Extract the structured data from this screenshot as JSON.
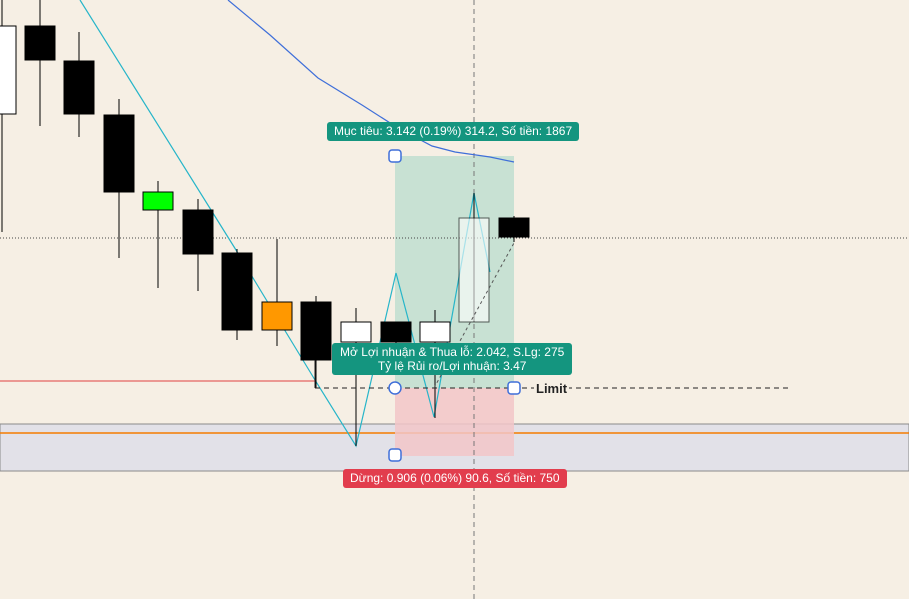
{
  "chart": {
    "background": "#f6efe4",
    "colors": {
      "bull_candle": "#ffffff",
      "bear_candle": "#000000",
      "highlight_green": "#00ff00",
      "highlight_orange": "#ff9800",
      "target_zone": "#b8dccd",
      "stop_zone": "#f2c6c8",
      "zigzag_line": "#26b5c9",
      "ma_line": "#3f6fd9",
      "support_band": "#e2e1e8",
      "orange_level": "#f57c00",
      "red_level": "#e04040",
      "target_label_bg": "#14957f",
      "stop_label_bg": "#e23d4d"
    }
  },
  "position_tool": {
    "target_label": "Mục tiêu: 3.142 (0.19%) 314.2, Số tiền: 1867",
    "open_label_line1": "Mở Lợi nhuận & Thua lỗ: 2.042, S.Lg: 275",
    "open_label_line2": "Tỷ lệ Rủi ro/Lợi nhuận: 3.47",
    "stop_label": "Dừng: 0.906 (0.06%) 90.6, Số tiền: 750",
    "limit_label": "Limit"
  }
}
